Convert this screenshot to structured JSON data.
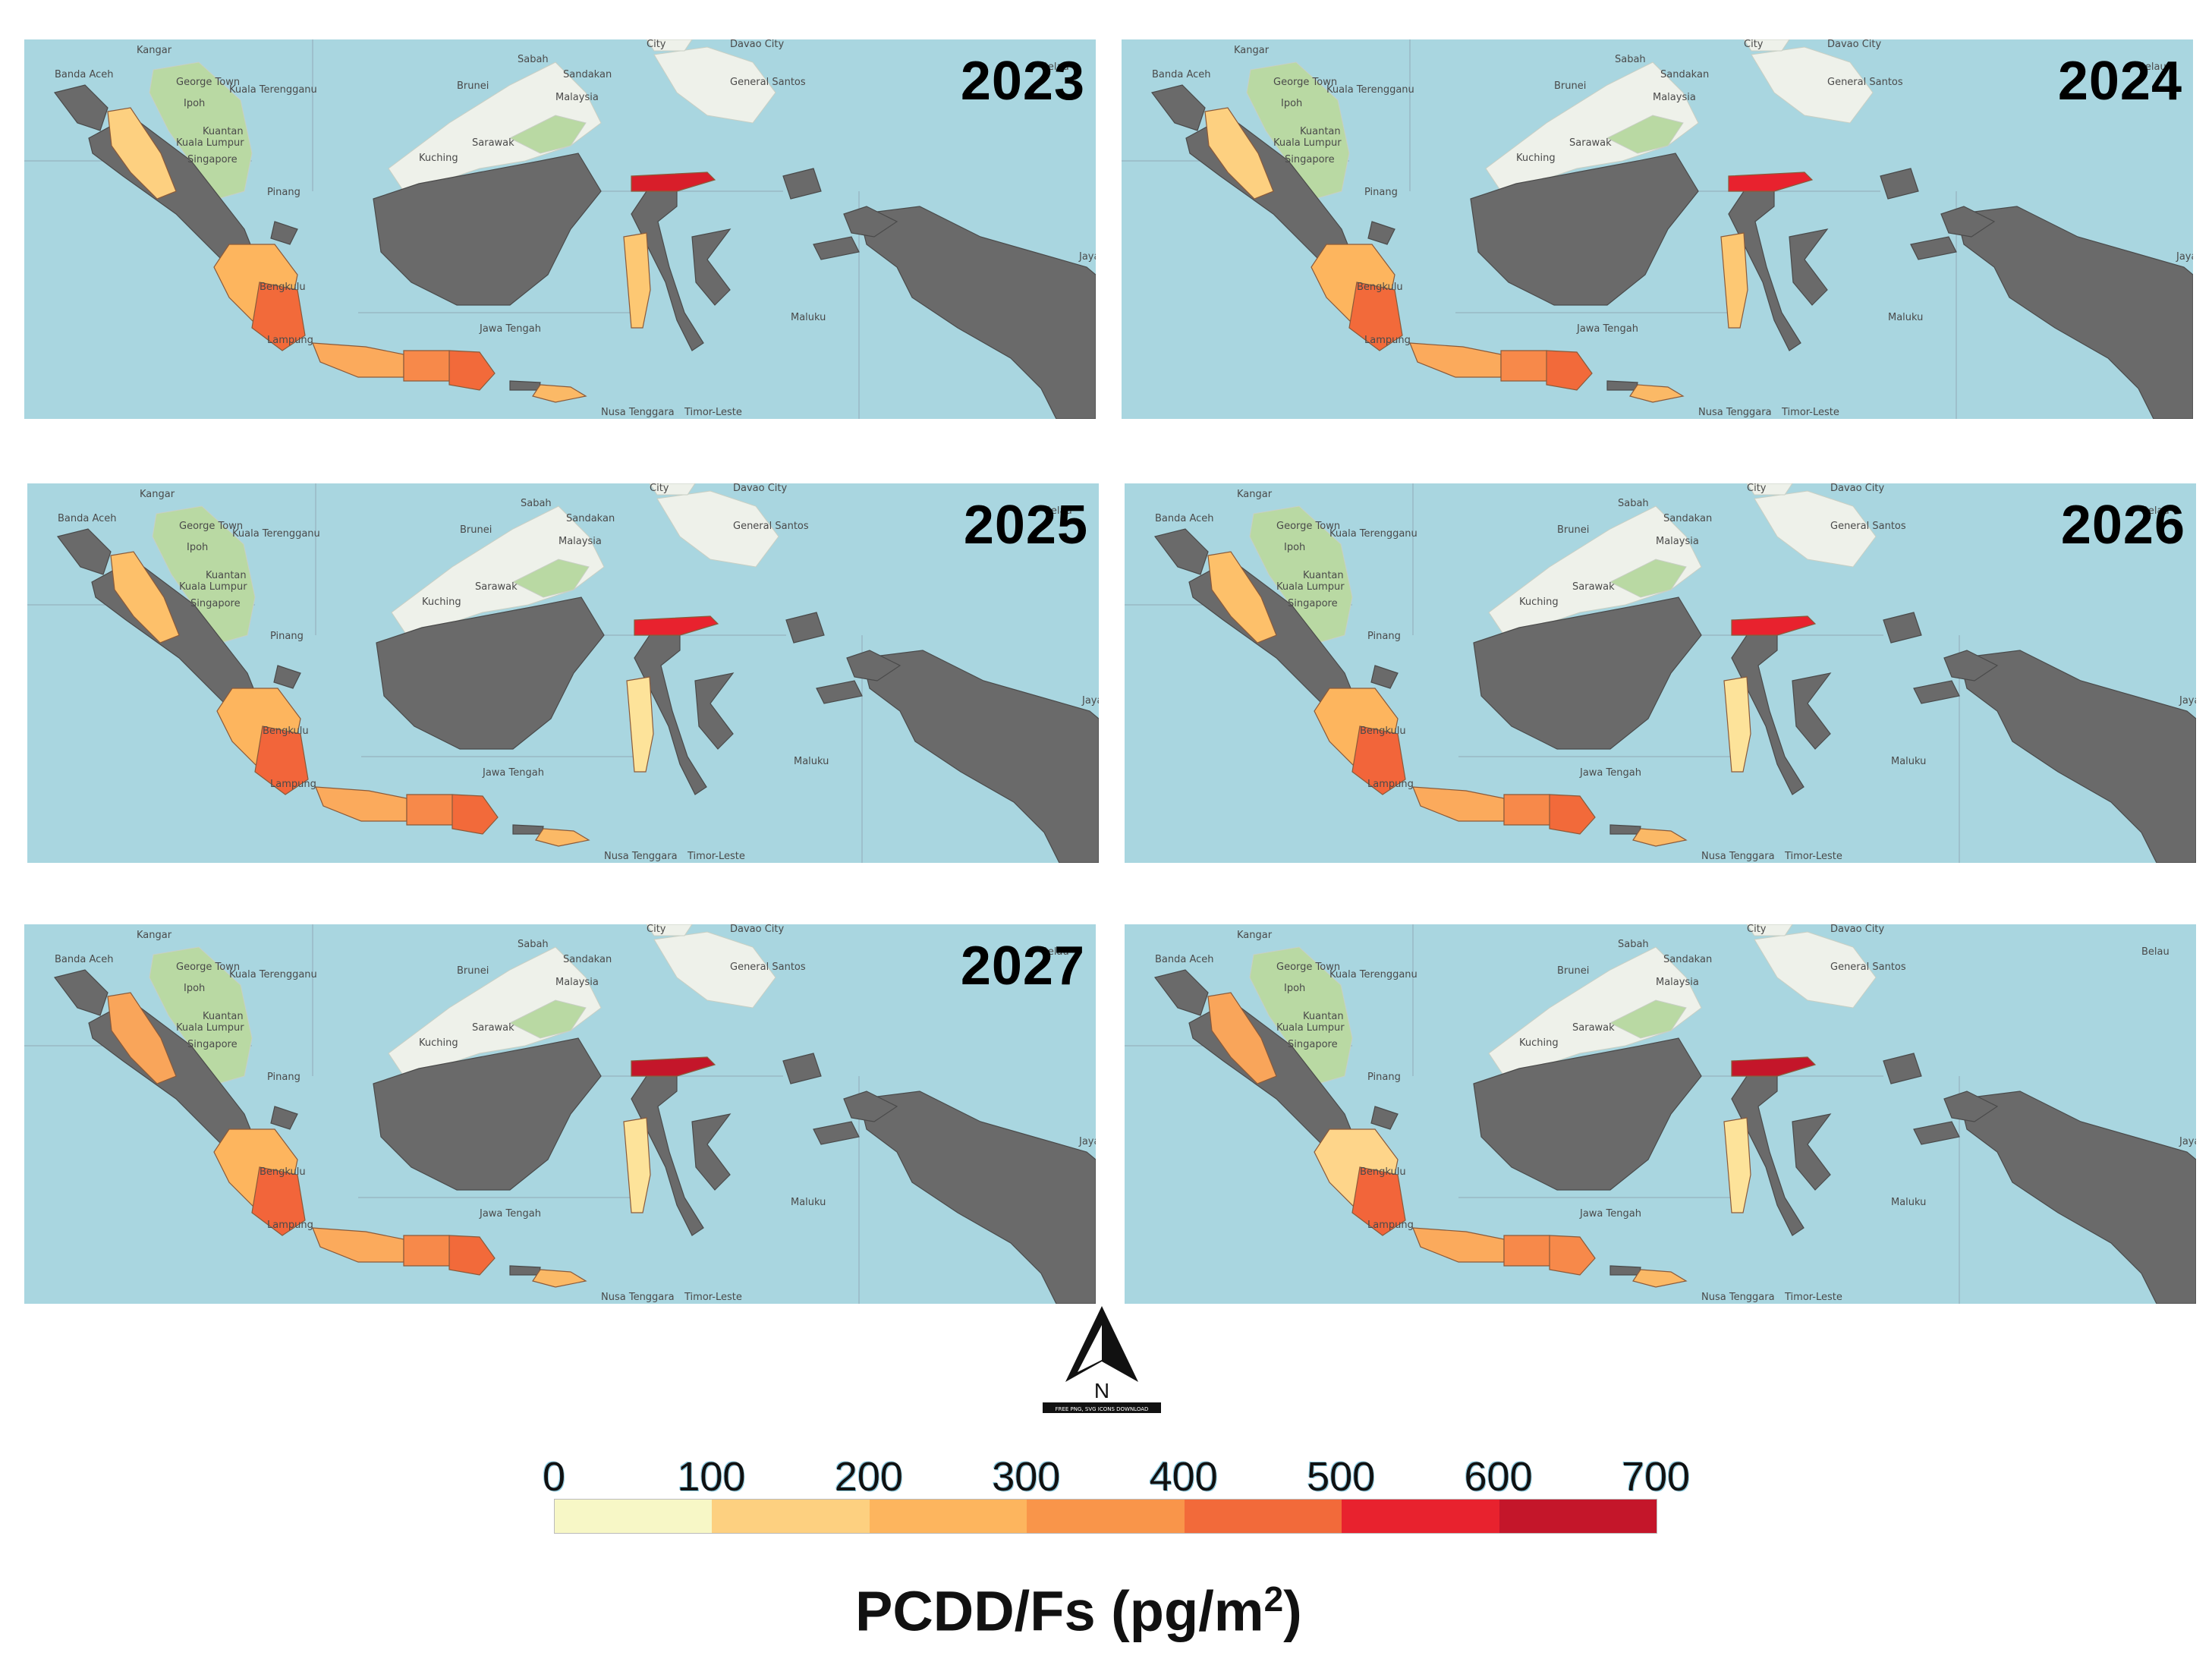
{
  "map_panels": [
    {
      "year_label": "2023",
      "fills": {
        "aceh": "#fdd080",
        "sumsel": "#fdb55e",
        "lampung": "#f26a3a",
        "jabar": "#fbaa5c",
        "jateng": "#f7894a",
        "jatim": "#f26a3a",
        "ntb": "#fbb966",
        "gorontalo": "#d81e2a",
        "sulbar": "#fdc873"
      }
    },
    {
      "year_label": "2024",
      "fills": {
        "aceh": "#fdd080",
        "sumsel": "#fdb55e",
        "lampung": "#f26a3a",
        "jabar": "#fbaa5c",
        "jateng": "#f7894a",
        "jatim": "#f26a3a",
        "ntb": "#fbb966",
        "gorontalo": "#e8222e",
        "sulbar": "#fdc873"
      }
    },
    {
      "year_label": "2025",
      "fills": {
        "aceh": "#fdc06a",
        "sumsel": "#fdb55e",
        "lampung": "#f2653a",
        "jabar": "#fbaa5c",
        "jateng": "#f7894a",
        "jatim": "#f26a3a",
        "ntb": "#fbb966",
        "gorontalo": "#e8222e",
        "sulbar": "#fde39a"
      }
    },
    {
      "year_label": "2026",
      "fills": {
        "aceh": "#fdc06a",
        "sumsel": "#fdb55e",
        "lampung": "#f2653a",
        "jabar": "#fbaa5c",
        "jateng": "#f7894a",
        "jatim": "#f26a3a",
        "ntb": "#fbb966",
        "gorontalo": "#e8222e",
        "sulbar": "#fde39a"
      }
    },
    {
      "year_label": "2027",
      "fills": {
        "aceh": "#f9a55a",
        "sumsel": "#fdb55e",
        "lampung": "#f2653a",
        "jabar": "#fbaa5c",
        "jateng": "#f7894a",
        "jatim": "#f26a3a",
        "ntb": "#fbb966",
        "gorontalo": "#c4162a",
        "sulbar": "#fde39a"
      }
    },
    {
      "year_label": "",
      "fills": {
        "aceh": "#f9a55a",
        "sumsel": "#fed58a",
        "lampung": "#f2653a",
        "jabar": "#fbaa5c",
        "jateng": "#f7894a",
        "jatim": "#f7894a",
        "ntb": "#fbb966",
        "gorontalo": "#c4162a",
        "sulbar": "#fde39a"
      }
    }
  ],
  "base_colors": {
    "sea": "#a9d6e0",
    "no_data_land": "#6a6a6a",
    "foreign_land": "#eef1ea",
    "foreign_forest": "#b9d9a3",
    "boundary": "#8a9aa8"
  },
  "place_labels": [
    "Kangar",
    "City",
    "Davao City",
    "Banda Aceh",
    "George Town",
    "Kuala Terengganu",
    "General Santos",
    "Sandakan",
    "Brunei",
    "Malaysia",
    "Ipoh",
    "Kuantan",
    "Kuala Lumpur",
    "Singapore",
    "Kuching",
    "Pinang",
    "Bengkulu",
    "Lampung",
    "Jawa Tengah",
    "Nusa Tenggara",
    "Timor-Leste",
    "Maluku",
    "Jayapura",
    "Sabah",
    "Sarawak",
    "Belau"
  ],
  "north_arrow": {
    "letter": "N",
    "caption": "FREE PNG, SVG ICONS   DOWNLOAD"
  },
  "legend": {
    "ticks": [
      "0",
      "100",
      "200",
      "300",
      "400",
      "500",
      "600",
      "700"
    ],
    "colors": [
      "#f7f7c6",
      "#fdd080",
      "#fdb55e",
      "#f9954a",
      "#f26a3a",
      "#e8222e",
      "#c4162a"
    ],
    "title": "PCDD/Fs (pg/m",
    "title_sup": "2",
    "title_end": ")"
  }
}
